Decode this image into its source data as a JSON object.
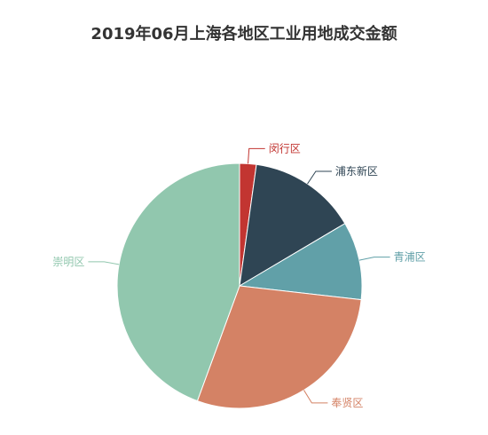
{
  "chart_data": {
    "type": "pie",
    "title": "2019年06月上海各地区工业用地成交金额",
    "slices": [
      {
        "label": "闵行区",
        "value": 2.2,
        "color": "#c23531"
      },
      {
        "label": "浦东新区",
        "value": 14.3,
        "color": "#2f4554"
      },
      {
        "label": "青浦区",
        "value": 10.3,
        "color": "#61a0a8"
      },
      {
        "label": "奉贤区",
        "value": 28.8,
        "color": "#d48265"
      },
      {
        "label": "崇明区",
        "value": 44.4,
        "color": "#91c7ae"
      }
    ]
  }
}
